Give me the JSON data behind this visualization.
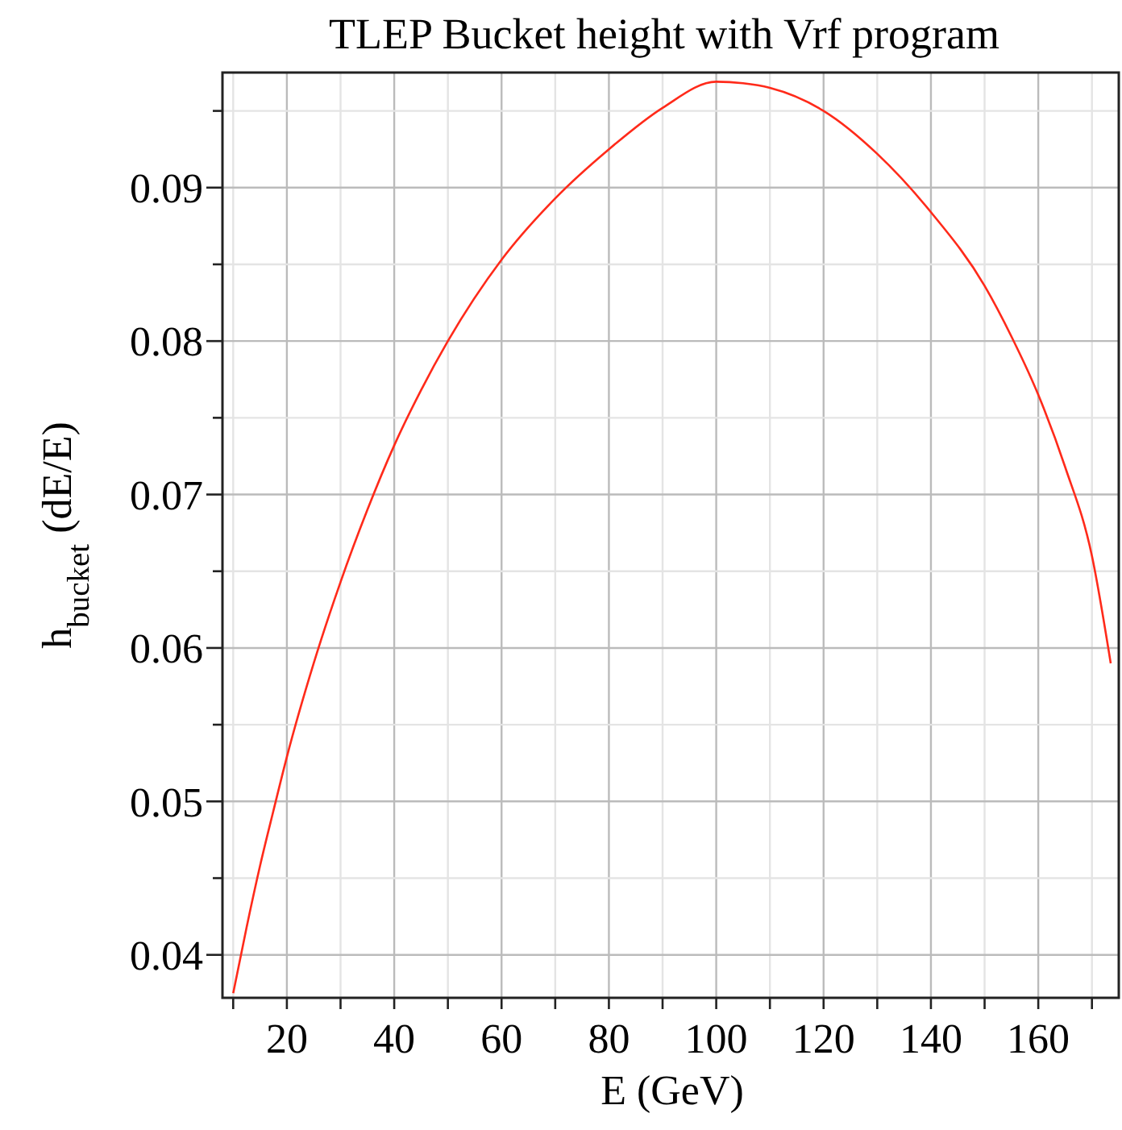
{
  "chart_data": {
    "type": "line",
    "title": "TLEP Bucket height with Vrf program",
    "xlabel": "E (GeV)",
    "ylabel": "h$_{bucket}$ (dE/E)",
    "series": [
      {
        "color": "#ff2a1a",
        "x": [
          10,
          12.5,
          15,
          17.5,
          20,
          25,
          30,
          35,
          40,
          45,
          50,
          60,
          70,
          80,
          90,
          100,
          105,
          110,
          120,
          130,
          140,
          150,
          155,
          160,
          165,
          170,
          173.5
        ],
        "values": [
          0.0375,
          0.0418,
          0.0458,
          0.0494,
          0.0529,
          0.059,
          0.0643,
          0.069,
          0.0732,
          0.0768,
          0.08,
          0.0853,
          0.0893,
          0.0925,
          0.0952,
          0.0969,
          0.0968,
          0.0965,
          0.095,
          0.0922,
          0.0884,
          0.0836,
          0.0803,
          0.0765,
          0.0718,
          0.066,
          0.059
        ]
      }
    ],
    "xlim": [
      8,
      175
    ],
    "ylim": [
      0.0372,
      0.0975
    ],
    "xticks": [
      {
        "value": 10,
        "label": null
      },
      20,
      {
        "value": 30,
        "label": null
      },
      40,
      {
        "value": 50,
        "label": null
      },
      60,
      {
        "value": 70,
        "label": null
      },
      80,
      {
        "value": 90,
        "label": null
      },
      100,
      {
        "value": 110,
        "label": null
      },
      120,
      {
        "value": 130,
        "label": null
      },
      140,
      {
        "value": 150,
        "label": null
      },
      160,
      {
        "value": 170,
        "label": null
      }
    ],
    "yticks": [
      0.04,
      {
        "value": 0.045,
        "label": null
      },
      0.05,
      {
        "value": 0.055,
        "label": null
      },
      0.06,
      {
        "value": 0.065,
        "label": null
      },
      0.07,
      {
        "value": 0.075,
        "label": null
      },
      0.08,
      {
        "value": 0.085,
        "label": null
      },
      0.09,
      {
        "value": 0.095,
        "label": null
      }
    ],
    "grid": true,
    "marker": "none",
    "line_style": "solid"
  }
}
